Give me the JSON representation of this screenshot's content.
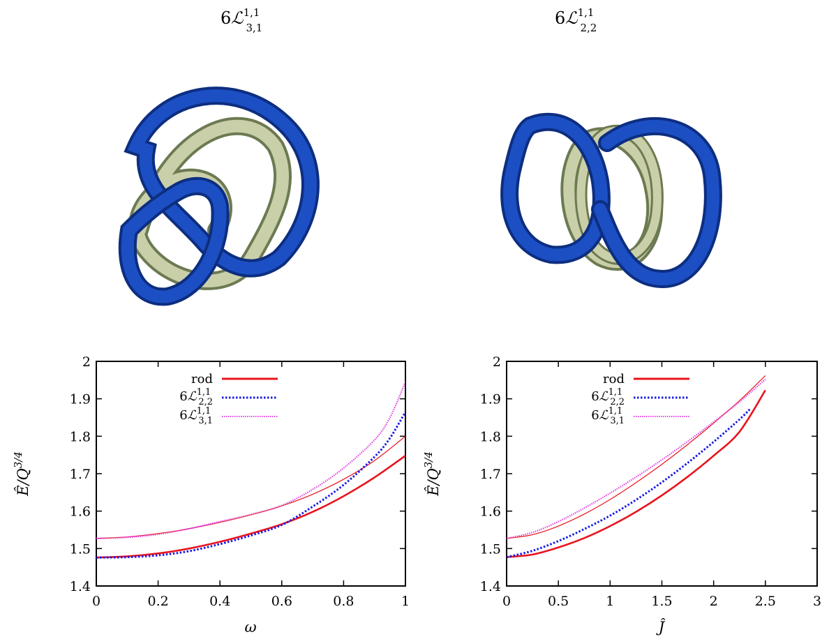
{
  "figure": {
    "knots": [
      {
        "label_main": "6",
        "label_L": "ℒ",
        "label_sup": "1,1",
        "label_sub": "3,1",
        "colors": {
          "outer": "#1c4fc4",
          "inner": "#c9cfa9"
        }
      },
      {
        "label_main": "6",
        "label_L": "ℒ",
        "label_sup": "1,1",
        "label_sub": "2,2",
        "colors": {
          "outer": "#1c4fc4",
          "inner": "#c9cfa9"
        }
      }
    ]
  },
  "legend": {
    "rod": "rod",
    "l22": {
      "main": "6",
      "L": "ℒ",
      "sup": "1,1",
      "sub": "2,2"
    },
    "l31": {
      "main": "6",
      "L": "ℒ",
      "sup": "1,1",
      "sub": "3,1"
    }
  },
  "colors": {
    "rod": "#e8141e",
    "l22": "#1a1ae6",
    "l31": "#e040e0"
  },
  "chart_data": [
    {
      "type": "line",
      "xlabel": "ω",
      "ylabel": "Ê/Q^{3/4}",
      "ylabel_parts": {
        "base": "Ê/Q",
        "exp": "3/4"
      },
      "xlim": [
        0,
        1
      ],
      "ylim": [
        1.4,
        2.0
      ],
      "xticks": [
        "0",
        "0.2",
        "0.4",
        "0.6",
        "0.8",
        "1"
      ],
      "yticks": [
        "1.4",
        "1.5",
        "1.6",
        "1.7",
        "1.8",
        "1.9",
        "2"
      ],
      "grid": false,
      "legend": "top-left",
      "series": [
        {
          "name": "rod",
          "style": "thick",
          "color": "#e8141e",
          "x": [
            0,
            0.1,
            0.2,
            0.3,
            0.4,
            0.5,
            0.6,
            0.7,
            0.8,
            0.9,
            1.0
          ],
          "y": [
            1.476,
            1.479,
            1.487,
            1.5,
            1.518,
            1.54,
            1.565,
            1.598,
            1.64,
            1.69,
            1.748
          ]
        },
        {
          "name": "rod",
          "style": "thin",
          "color": "#e8141e",
          "x": [
            0,
            0.1,
            0.2,
            0.3,
            0.4,
            0.5,
            0.6,
            0.7,
            0.8,
            0.9,
            1.0
          ],
          "y": [
            1.527,
            1.531,
            1.54,
            1.553,
            1.57,
            1.59,
            1.614,
            1.645,
            1.685,
            1.735,
            1.8
          ]
        },
        {
          "name": "6L22",
          "style": "dotted",
          "color": "#1a1ae6",
          "x": [
            0,
            0.1,
            0.2,
            0.3,
            0.4,
            0.5,
            0.6,
            0.7,
            0.8,
            0.9,
            0.95,
            1.0
          ],
          "y": [
            1.476,
            1.477,
            1.482,
            1.493,
            1.512,
            1.535,
            1.563,
            1.612,
            1.67,
            1.745,
            1.795,
            1.865
          ]
        },
        {
          "name": "6L31",
          "style": "dotted",
          "color": "#e040e0",
          "x": [
            0,
            0.1,
            0.2,
            0.3,
            0.4,
            0.5,
            0.6,
            0.7,
            0.8,
            0.9,
            0.95,
            1.0
          ],
          "y": [
            1.527,
            1.53,
            1.538,
            1.553,
            1.572,
            1.591,
            1.615,
            1.658,
            1.715,
            1.79,
            1.85,
            1.945
          ]
        }
      ]
    },
    {
      "type": "line",
      "xlabel": "Ĵ",
      "ylabel": "Ê/Q^{3/4}",
      "ylabel_parts": {
        "base": "Ê/Q",
        "exp": "3/4"
      },
      "xlim": [
        0,
        3
      ],
      "ylim": [
        1.4,
        2.0
      ],
      "xticks": [
        "0",
        "0.5",
        "1",
        "1.5",
        "2",
        "2.5",
        "3"
      ],
      "yticks": [
        "1.4",
        "1.5",
        "1.6",
        "1.7",
        "1.8",
        "1.9",
        "2"
      ],
      "grid": false,
      "legend": "top-left",
      "series": [
        {
          "name": "rod",
          "style": "thick",
          "color": "#e8141e",
          "x": [
            0,
            0.25,
            0.5,
            0.75,
            1.0,
            1.25,
            1.5,
            1.75,
            2.0,
            2.25,
            2.5
          ],
          "y": [
            1.477,
            1.484,
            1.503,
            1.528,
            1.56,
            1.598,
            1.642,
            1.692,
            1.748,
            1.812,
            1.923
          ]
        },
        {
          "name": "rod",
          "style": "thin",
          "color": "#e8141e",
          "x": [
            0,
            0.25,
            0.5,
            0.75,
            1.0,
            1.25,
            1.5,
            1.75,
            2.0,
            2.25,
            2.5
          ],
          "y": [
            1.527,
            1.537,
            1.56,
            1.592,
            1.631,
            1.676,
            1.725,
            1.778,
            1.835,
            1.895,
            1.962
          ]
        },
        {
          "name": "6L22",
          "style": "dotted",
          "color": "#1a1ae6",
          "x": [
            0,
            0.25,
            0.5,
            0.75,
            1.0,
            1.25,
            1.5,
            1.75,
            2.0,
            2.25,
            2.35
          ],
          "y": [
            1.477,
            1.494,
            1.52,
            1.552,
            1.588,
            1.63,
            1.677,
            1.729,
            1.785,
            1.845,
            1.872
          ]
        },
        {
          "name": "6L31",
          "style": "dotted",
          "color": "#e040e0",
          "x": [
            0,
            0.25,
            0.5,
            0.75,
            1.0,
            1.25,
            1.5,
            1.75,
            2.0,
            2.25,
            2.5
          ],
          "y": [
            1.527,
            1.543,
            1.572,
            1.608,
            1.648,
            1.691,
            1.737,
            1.786,
            1.838,
            1.892,
            1.952
          ]
        }
      ]
    }
  ]
}
